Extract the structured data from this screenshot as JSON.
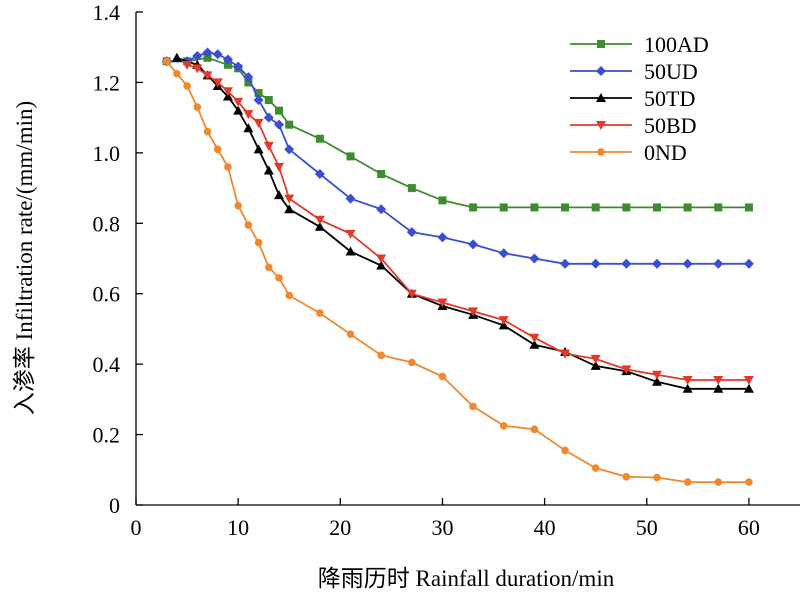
{
  "chart_data": {
    "type": "line",
    "title": "",
    "xlabel": "降雨历时 Rainfall duration/min",
    "ylabel": "入渗率 Infiltration rate/(mm/min)",
    "xlim": [
      0,
      65
    ],
    "ylim": [
      0,
      1.4
    ],
    "xticks": [
      "0",
      "10",
      "20",
      "30",
      "40",
      "50",
      "60"
    ],
    "yticks": [
      "0",
      "0.2",
      "0.4",
      "0.6",
      "0.8",
      "1.0",
      "1.2",
      "1.4"
    ],
    "grid": false,
    "legend_position": "top-right",
    "series": [
      {
        "name": "100AD",
        "color": "#3d8c2e",
        "marker": "square",
        "x": [
          3,
          5,
          7,
          9,
          10,
          11,
          12,
          13,
          14,
          15,
          18,
          21,
          24,
          27,
          30,
          33,
          36,
          39,
          42,
          45,
          48,
          51,
          54,
          57,
          60
        ],
        "y": [
          1.26,
          1.26,
          1.27,
          1.25,
          1.24,
          1.2,
          1.17,
          1.15,
          1.12,
          1.08,
          1.04,
          0.99,
          0.94,
          0.9,
          0.865,
          0.845,
          0.845,
          0.845,
          0.845,
          0.845,
          0.845,
          0.845,
          0.845,
          0.845,
          0.845
        ]
      },
      {
        "name": "50UD",
        "color": "#3a4fd0",
        "marker": "diamond",
        "x": [
          3,
          5,
          6,
          7,
          8,
          9,
          10,
          11,
          12,
          13,
          14,
          15,
          18,
          21,
          24,
          27,
          30,
          33,
          36,
          39,
          42,
          45,
          48,
          51,
          54,
          57,
          60
        ],
        "y": [
          1.26,
          1.26,
          1.275,
          1.285,
          1.28,
          1.265,
          1.245,
          1.215,
          1.15,
          1.1,
          1.08,
          1.01,
          0.94,
          0.87,
          0.84,
          0.775,
          0.76,
          0.74,
          0.715,
          0.7,
          0.685,
          0.685,
          0.685,
          0.685,
          0.685,
          0.685,
          0.685
        ]
      },
      {
        "name": "50TD",
        "color": "#000000",
        "marker": "triangle-up",
        "x": [
          4,
          6,
          7,
          8,
          9,
          10,
          11,
          12,
          13,
          14,
          15,
          18,
          21,
          24,
          27,
          30,
          33,
          36,
          39,
          42,
          45,
          48,
          51,
          54,
          57,
          60
        ],
        "y": [
          1.27,
          1.25,
          1.22,
          1.19,
          1.16,
          1.12,
          1.07,
          1.01,
          0.95,
          0.88,
          0.84,
          0.79,
          0.72,
          0.68,
          0.6,
          0.565,
          0.54,
          0.51,
          0.455,
          0.435,
          0.395,
          0.38,
          0.35,
          0.33,
          0.33,
          0.33
        ]
      },
      {
        "name": "50BD",
        "color": "#e03a2a",
        "marker": "triangle-down",
        "x": [
          5,
          6,
          7,
          8,
          9,
          10,
          11,
          12,
          13,
          14,
          15,
          18,
          21,
          24,
          27,
          30,
          33,
          36,
          39,
          42,
          45,
          48,
          51,
          54,
          57,
          60
        ],
        "y": [
          1.25,
          1.24,
          1.22,
          1.2,
          1.175,
          1.145,
          1.11,
          1.085,
          1.02,
          0.96,
          0.87,
          0.81,
          0.77,
          0.7,
          0.6,
          0.575,
          0.55,
          0.525,
          0.475,
          0.43,
          0.415,
          0.385,
          0.37,
          0.355,
          0.355,
          0.355
        ]
      },
      {
        "name": "0ND",
        "color": "#f0882e",
        "marker": "circle",
        "x": [
          3,
          4,
          5,
          6,
          7,
          8,
          9,
          10,
          11,
          12,
          13,
          14,
          15,
          18,
          21,
          24,
          27,
          30,
          33,
          36,
          39,
          42,
          45,
          48,
          51,
          54,
          57,
          60
        ],
        "y": [
          1.26,
          1.225,
          1.19,
          1.13,
          1.06,
          1.01,
          0.96,
          0.85,
          0.795,
          0.745,
          0.675,
          0.645,
          0.595,
          0.545,
          0.485,
          0.425,
          0.405,
          0.365,
          0.28,
          0.225,
          0.215,
          0.155,
          0.105,
          0.08,
          0.078,
          0.065,
          0.065,
          0.065
        ]
      }
    ]
  }
}
